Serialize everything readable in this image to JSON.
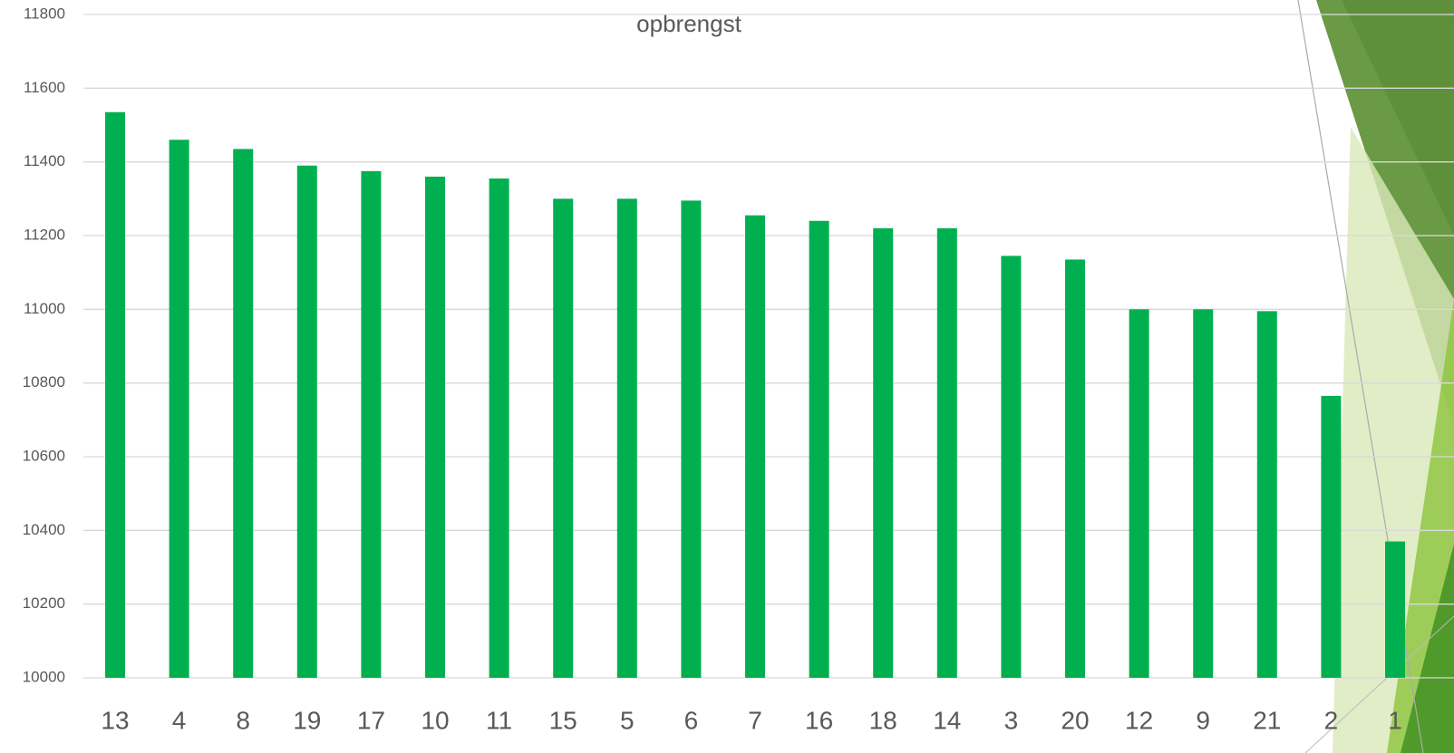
{
  "chart_data": {
    "type": "bar",
    "title": "opbrengst",
    "categories": [
      "13",
      "4",
      "8",
      "19",
      "17",
      "10",
      "11",
      "15",
      "5",
      "6",
      "7",
      "16",
      "18",
      "14",
      "3",
      "20",
      "12",
      "9",
      "21",
      "2",
      "1"
    ],
    "values": [
      11535,
      11460,
      11435,
      11390,
      11375,
      11360,
      11355,
      11300,
      11300,
      11295,
      11255,
      11240,
      11220,
      11220,
      11145,
      11135,
      11000,
      11000,
      10995,
      10765,
      10370
    ],
    "color": "#00b050",
    "ylim": [
      10000,
      11800
    ],
    "yticks": [
      10000,
      10200,
      10400,
      10600,
      10800,
      11000,
      11200,
      11400,
      11600,
      11800
    ],
    "grid": true
  }
}
